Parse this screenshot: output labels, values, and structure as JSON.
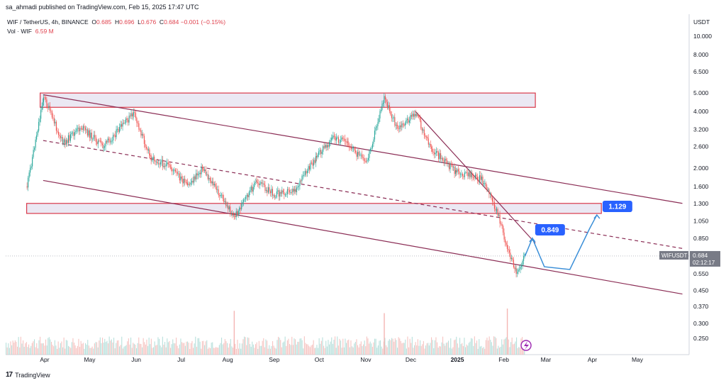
{
  "header": {
    "publisher_line": "sa_ahmadi published on TradingView.com, Feb 15, 2025 17:47 UTC"
  },
  "legend": {
    "symbol": "WIF / TetherUS, 4h, BINANCE",
    "open_label": "O",
    "open": "0.685",
    "high_label": "H",
    "high": "0.696",
    "low_label": "L",
    "low": "0.676",
    "close_label": "C",
    "close": "0.684",
    "change": "−0.001 (−0.15%)",
    "volume_label": "Vol · WIF",
    "volume": "6.59 M"
  },
  "footer": {
    "brand": "TradingView"
  },
  "colors": {
    "up": "#26a69a",
    "down": "#ef5350",
    "channel": "#8b2d55",
    "zone_border": "#d9394a",
    "zone_fill": "#ebe8f3",
    "projection": "#3b8fd8",
    "label_bg": "#2962ff"
  },
  "chart_data": {
    "type": "line",
    "title": "WIF / TetherUS, 4h, BINANCE",
    "y_unit": "USDT",
    "y_scale": "log",
    "ylim": [
      0.22,
      12.0
    ],
    "y_ticks": [
      "10.000",
      "8.000",
      "6.500",
      "5.000",
      "4.000",
      "3.200",
      "2.600",
      "2.000",
      "1.600",
      "1.300",
      "1.050",
      "0.850",
      "0.684",
      "0.550",
      "0.450",
      "0.370",
      "0.300",
      "0.250"
    ],
    "x_ticks": [
      "Apr",
      "May",
      "Jun",
      "Jul",
      "Aug",
      "Sep",
      "Oct",
      "Nov",
      "Dec",
      "2025",
      "Feb",
      "Mar",
      "Apr",
      "May"
    ],
    "price_path": {
      "x": [
        "2024-03-20",
        "2024-03-31",
        "2024-04-13",
        "2024-04-25",
        "2024-05-10",
        "2024-05-30",
        "2024-06-10",
        "2024-06-24",
        "2024-07-05",
        "2024-07-15",
        "2024-08-05",
        "2024-08-20",
        "2024-09-01",
        "2024-09-15",
        "2024-09-29",
        "2024-10-10",
        "2024-10-20",
        "2024-11-01",
        "2024-11-13",
        "2024-11-22",
        "2024-12-04",
        "2024-12-15",
        "2024-12-31",
        "2025-01-17",
        "2025-01-27",
        "2025-02-03",
        "2025-02-09",
        "2025-02-15"
      ],
      "y": [
        1.6,
        4.8,
        2.7,
        3.3,
        2.6,
        3.9,
        2.3,
        2.0,
        1.6,
        2.0,
        1.1,
        1.7,
        1.45,
        1.55,
        2.3,
        2.9,
        2.7,
        2.1,
        4.7,
        3.2,
        3.9,
        2.5,
        1.9,
        1.75,
        1.2,
        0.75,
        0.56,
        0.684
      ]
    },
    "last_price": {
      "symbol": "WIFUSDT",
      "value": "0.684",
      "countdown": "02:12:17"
    },
    "resistance_zones": [
      {
        "name": "top zone",
        "low": 4.2,
        "high": 5.0,
        "x_start": "2024-03-29",
        "x_end": "2025-02-22"
      },
      {
        "name": "mid zone",
        "low": 1.15,
        "high": 1.3,
        "x_start": "2024-03-20",
        "x_end": "2025-04-07"
      }
    ],
    "channel": {
      "upper": {
        "x": [
          "2024-03-31",
          "2025-05-31"
        ],
        "y": [
          4.9,
          1.3
        ]
      },
      "middle": {
        "x": [
          "2024-03-31",
          "2025-05-31"
        ],
        "y": [
          2.8,
          0.75
        ]
      },
      "lower": {
        "x": [
          "2024-03-31",
          "2025-05-31"
        ],
        "y": [
          1.72,
          0.43
        ]
      },
      "descending_trendline": {
        "x": [
          "2024-12-04",
          "2025-02-22"
        ],
        "y": [
          4.0,
          0.8
        ]
      }
    },
    "projection": {
      "x": [
        "2025-02-15",
        "2025-02-20",
        "2025-02-28",
        "2025-03-17",
        "2025-03-30",
        "2025-04-04"
      ],
      "y": [
        0.68,
        0.849,
        0.6,
        0.58,
        0.95,
        1.129
      ],
      "labels": [
        {
          "text": "0.849",
          "x": "2025-02-20",
          "y": 0.849
        },
        {
          "text": "1.129",
          "x": "2025-04-04",
          "y": 1.129
        }
      ]
    },
    "volume": {
      "scale": "relative",
      "spikes": [
        {
          "x": "2024-08-05",
          "value": 0.95
        },
        {
          "x": "2024-11-13",
          "value": 0.9
        },
        {
          "x": "2025-02-03",
          "value": 1.0
        }
      ]
    }
  }
}
